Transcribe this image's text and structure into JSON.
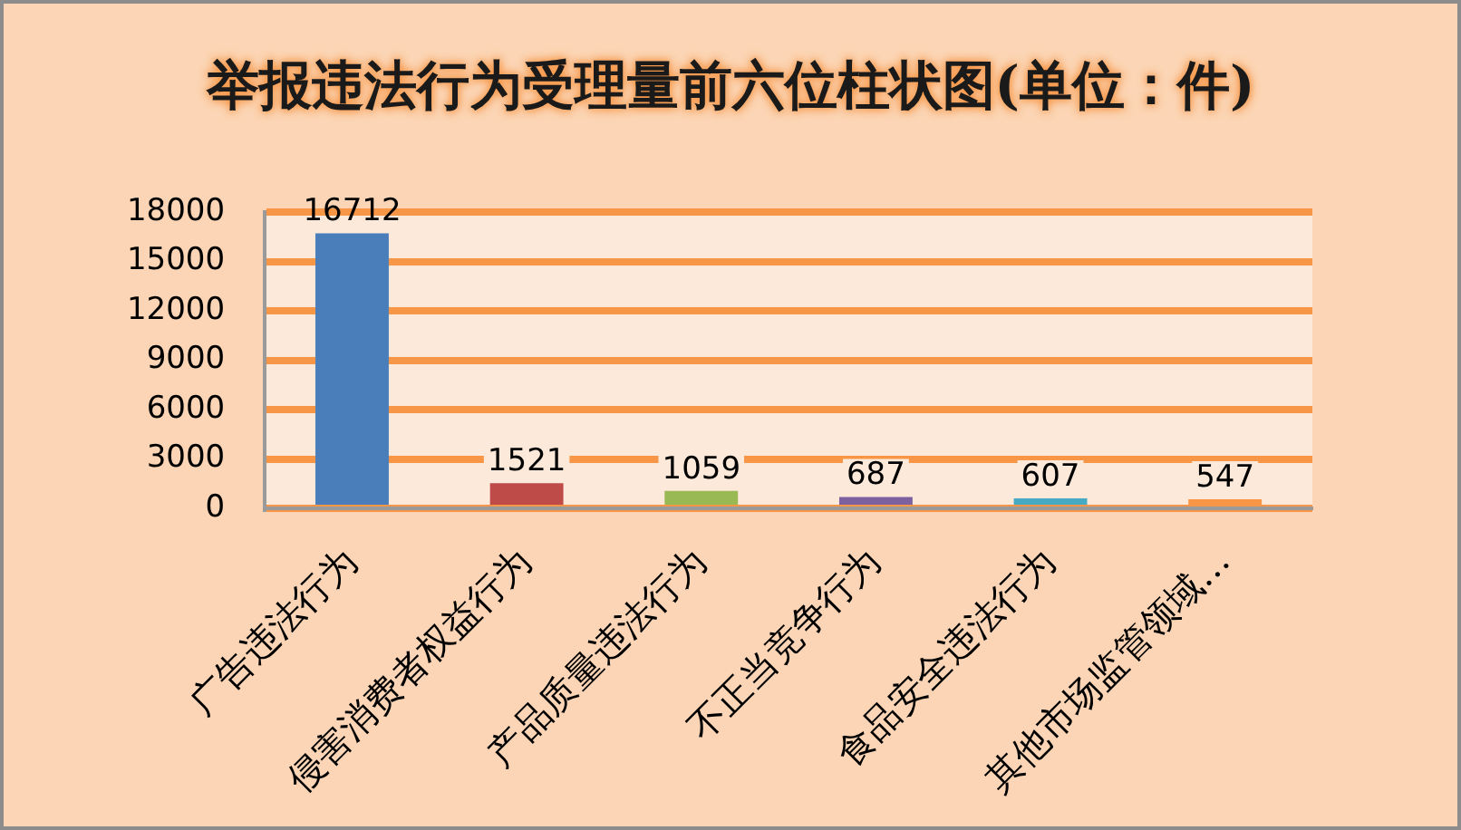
{
  "chart_data": {
    "type": "bar",
    "title": "举报违法行为受理量前六位柱状图(单位：件)",
    "categories": [
      "广告违法行为",
      "侵害消费者权益行为",
      "产品质量违法行为",
      "不正当竞争行为",
      "食品安全违法行为",
      "其他市场监管领域…"
    ],
    "values": [
      16712,
      1521,
      1059,
      687,
      607,
      547
    ],
    "colors": [
      "#4a7ebb",
      "#be4b48",
      "#98b954",
      "#7d60a0",
      "#46aac5",
      "#f79646"
    ],
    "ylim": [
      0,
      18000
    ],
    "yticks": [
      0,
      3000,
      6000,
      9000,
      12000,
      15000,
      18000
    ],
    "grid": "y",
    "data_labels": true
  }
}
